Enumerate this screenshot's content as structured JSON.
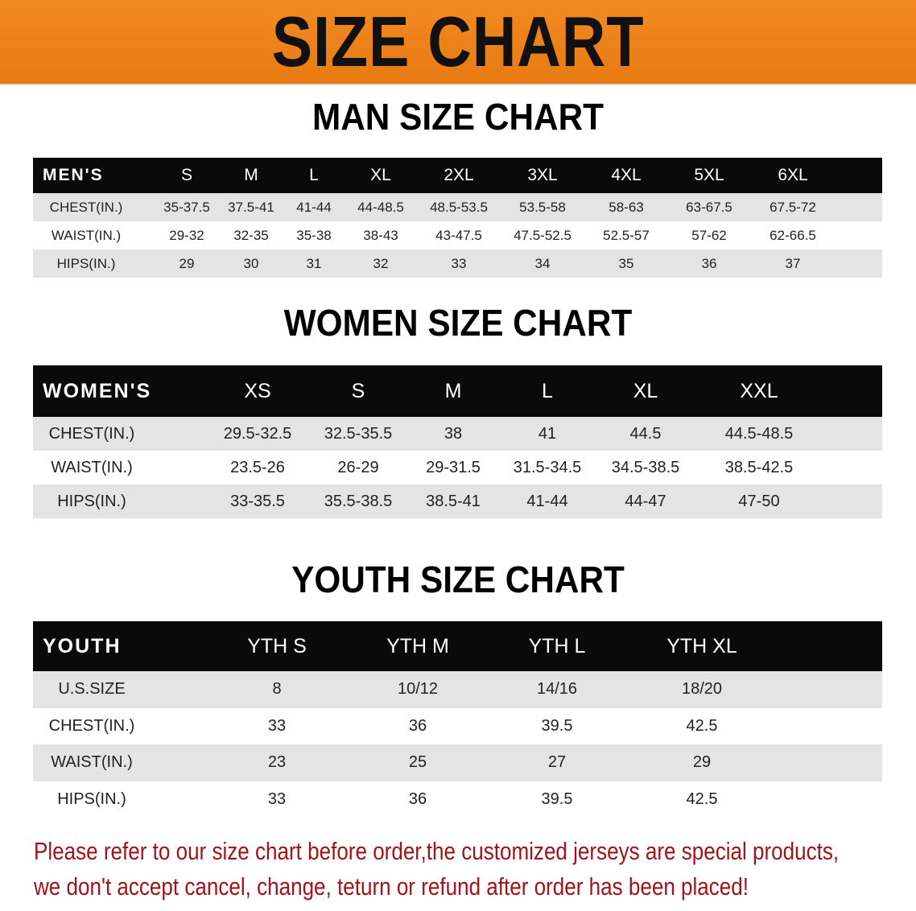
{
  "banner_title": "SIZE CHART",
  "colors": {
    "banner": "#f08620",
    "header_row": "#0a0a0a",
    "alt_row": "#e4e4e4",
    "note": "#a0141a"
  },
  "tables": [
    {
      "title": "MAN SIZE CHART",
      "header": [
        "MEN'S",
        "S",
        "M",
        "L",
        "XL",
        "2XL",
        "3XL",
        "4XL",
        "5XL",
        "6XL"
      ],
      "rows": [
        [
          "CHEST(IN.)",
          "35-37.5",
          "37.5-41",
          "41-44",
          "44-48.5",
          "48.5-53.5",
          "53.5-58",
          "58-63",
          "63-67.5",
          "67.5-72"
        ],
        [
          "WAIST(IN.)",
          "29-32",
          "32-35",
          "35-38",
          "38-43",
          "43-47.5",
          "47.5-52.5",
          "52.5-57",
          "57-62",
          "62-66.5"
        ],
        [
          "HIPS(IN.)",
          "29",
          "30",
          "31",
          "32",
          "33",
          "34",
          "35",
          "36",
          "37"
        ]
      ]
    },
    {
      "title": "WOMEN SIZE CHART",
      "header": [
        "WOMEN'S",
        "XS",
        "S",
        "M",
        "L",
        "XL",
        "XXL"
      ],
      "rows": [
        [
          "CHEST(IN.)",
          "29.5-32.5",
          "32.5-35.5",
          "38",
          "41",
          "44.5",
          "44.5-48.5"
        ],
        [
          "WAIST(IN.)",
          "23.5-26",
          "26-29",
          "29-31.5",
          "31.5-34.5",
          "34.5-38.5",
          "38.5-42.5"
        ],
        [
          "HIPS(IN.)",
          "33-35.5",
          "35.5-38.5",
          "38.5-41",
          "41-44",
          "44-47",
          "47-50"
        ]
      ]
    },
    {
      "title": "YOUTH SIZE CHART",
      "header": [
        "YOUTH",
        "YTH S",
        "YTH M",
        "YTH L",
        "YTH XL"
      ],
      "rows": [
        [
          "U.S.SIZE",
          "8",
          "10/12",
          "14/16",
          "18/20"
        ],
        [
          "CHEST(IN.)",
          "33",
          "36",
          "39.5",
          "42.5"
        ],
        [
          "WAIST(IN.)",
          "23",
          "25",
          "27",
          "29"
        ],
        [
          "HIPS(IN.)",
          "33",
          "36",
          "39.5",
          "42.5"
        ]
      ]
    }
  ],
  "notice": [
    "Please refer to our size chart before order,the customized jerseys are special products,",
    "we don't accept cancel, change, teturn or refund after order has been placed!"
  ]
}
